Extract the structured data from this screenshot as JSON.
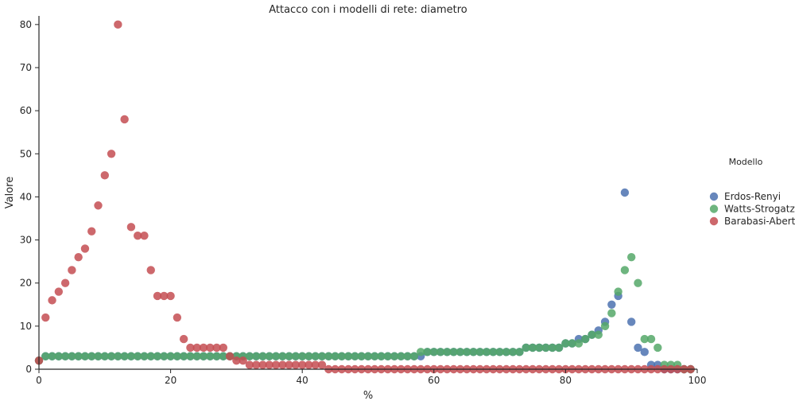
{
  "chart_data": {
    "type": "scatter",
    "title": "Attacco con i modelli di rete: diametro",
    "xlabel": "%",
    "ylabel": "Valore",
    "xlim": [
      0,
      100
    ],
    "ylim": [
      0,
      82
    ],
    "xticks": [
      0,
      20,
      40,
      60,
      80,
      100
    ],
    "yticks": [
      0,
      10,
      20,
      30,
      40,
      50,
      60,
      70,
      80
    ],
    "grid": false,
    "legend": {
      "title": "Modello",
      "placement": "right"
    },
    "series": [
      {
        "name": "Erdos-Renyi",
        "color": "#4c72b0",
        "x": [
          0,
          1,
          2,
          3,
          4,
          5,
          6,
          7,
          8,
          9,
          10,
          11,
          12,
          13,
          14,
          15,
          16,
          17,
          18,
          19,
          20,
          21,
          22,
          23,
          24,
          25,
          26,
          27,
          28,
          29,
          30,
          31,
          32,
          33,
          34,
          35,
          36,
          37,
          38,
          39,
          40,
          41,
          42,
          43,
          44,
          45,
          46,
          47,
          48,
          49,
          50,
          51,
          52,
          53,
          54,
          55,
          56,
          57,
          58,
          59,
          60,
          61,
          62,
          63,
          64,
          65,
          66,
          67,
          68,
          69,
          70,
          71,
          72,
          73,
          74,
          75,
          76,
          77,
          78,
          79,
          80,
          81,
          82,
          83,
          84,
          85,
          86,
          87,
          88,
          89,
          90,
          91,
          92,
          93,
          94,
          95,
          96,
          97,
          98,
          99
        ],
        "y": [
          2,
          3,
          3,
          3,
          3,
          3,
          3,
          3,
          3,
          3,
          3,
          3,
          3,
          3,
          3,
          3,
          3,
          3,
          3,
          3,
          3,
          3,
          3,
          3,
          3,
          3,
          3,
          3,
          3,
          3,
          3,
          3,
          3,
          3,
          3,
          3,
          3,
          3,
          3,
          3,
          3,
          3,
          3,
          3,
          3,
          3,
          3,
          3,
          3,
          3,
          3,
          3,
          3,
          3,
          3,
          3,
          3,
          3,
          3,
          4,
          4,
          4,
          4,
          4,
          4,
          4,
          4,
          4,
          4,
          4,
          4,
          4,
          4,
          4,
          5,
          5,
          5,
          5,
          5,
          5,
          6,
          6,
          7,
          7,
          8,
          9,
          11,
          15,
          17,
          41,
          11,
          5,
          4,
          1,
          1,
          0,
          0,
          0,
          0,
          0
        ]
      },
      {
        "name": "Watts-Strogatz",
        "color": "#55a868",
        "x": [
          0,
          1,
          2,
          3,
          4,
          5,
          6,
          7,
          8,
          9,
          10,
          11,
          12,
          13,
          14,
          15,
          16,
          17,
          18,
          19,
          20,
          21,
          22,
          23,
          24,
          25,
          26,
          27,
          28,
          29,
          30,
          31,
          32,
          33,
          34,
          35,
          36,
          37,
          38,
          39,
          40,
          41,
          42,
          43,
          44,
          45,
          46,
          47,
          48,
          49,
          50,
          51,
          52,
          53,
          54,
          55,
          56,
          57,
          58,
          59,
          60,
          61,
          62,
          63,
          64,
          65,
          66,
          67,
          68,
          69,
          70,
          71,
          72,
          73,
          74,
          75,
          76,
          77,
          78,
          79,
          80,
          81,
          82,
          83,
          84,
          85,
          86,
          87,
          88,
          89,
          90,
          91,
          92,
          93,
          94,
          95,
          96,
          97,
          98,
          99
        ],
        "y": [
          2,
          3,
          3,
          3,
          3,
          3,
          3,
          3,
          3,
          3,
          3,
          3,
          3,
          3,
          3,
          3,
          3,
          3,
          3,
          3,
          3,
          3,
          3,
          3,
          3,
          3,
          3,
          3,
          3,
          3,
          3,
          3,
          3,
          3,
          3,
          3,
          3,
          3,
          3,
          3,
          3,
          3,
          3,
          3,
          3,
          3,
          3,
          3,
          3,
          3,
          3,
          3,
          3,
          3,
          3,
          3,
          3,
          3,
          4,
          4,
          4,
          4,
          4,
          4,
          4,
          4,
          4,
          4,
          4,
          4,
          4,
          4,
          4,
          4,
          5,
          5,
          5,
          5,
          5,
          5,
          6,
          6,
          6,
          7,
          8,
          8,
          10,
          13,
          18,
          23,
          26,
          20,
          7,
          7,
          5,
          1,
          1,
          1,
          0,
          0
        ]
      },
      {
        "name": "Barabasi-Abert",
        "color": "#c44e52",
        "x": [
          0,
          1,
          2,
          3,
          4,
          5,
          6,
          7,
          8,
          9,
          10,
          11,
          12,
          13,
          14,
          15,
          16,
          17,
          18,
          19,
          20,
          21,
          22,
          23,
          24,
          25,
          26,
          27,
          28,
          29,
          30,
          31,
          32,
          33,
          34,
          35,
          36,
          37,
          38,
          39,
          40,
          41,
          42,
          43,
          44,
          45,
          46,
          47,
          48,
          49,
          50,
          51,
          52,
          53,
          54,
          55,
          56,
          57,
          58,
          59,
          60,
          61,
          62,
          63,
          64,
          65,
          66,
          67,
          68,
          69,
          70,
          71,
          72,
          73,
          74,
          75,
          76,
          77,
          78,
          79,
          80,
          81,
          82,
          83,
          84,
          85,
          86,
          87,
          88,
          89,
          90,
          91,
          92,
          93,
          94,
          95,
          96,
          97,
          98,
          99
        ],
        "y": [
          2,
          12,
          16,
          18,
          20,
          23,
          26,
          28,
          32,
          38,
          45,
          50,
          80,
          58,
          33,
          31,
          31,
          23,
          17,
          17,
          17,
          12,
          7,
          5,
          5,
          5,
          5,
          5,
          5,
          3,
          2,
          2,
          1,
          1,
          1,
          1,
          1,
          1,
          1,
          1,
          1,
          1,
          1,
          1,
          0,
          0,
          0,
          0,
          0,
          0,
          0,
          0,
          0,
          0,
          0,
          0,
          0,
          0,
          0,
          0,
          0,
          0,
          0,
          0,
          0,
          0,
          0,
          0,
          0,
          0,
          0,
          0,
          0,
          0,
          0,
          0,
          0,
          0,
          0,
          0,
          0,
          0,
          0,
          0,
          0,
          0,
          0,
          0,
          0,
          0,
          0,
          0,
          0,
          0,
          0,
          0,
          0,
          0,
          0,
          0
        ]
      }
    ]
  }
}
